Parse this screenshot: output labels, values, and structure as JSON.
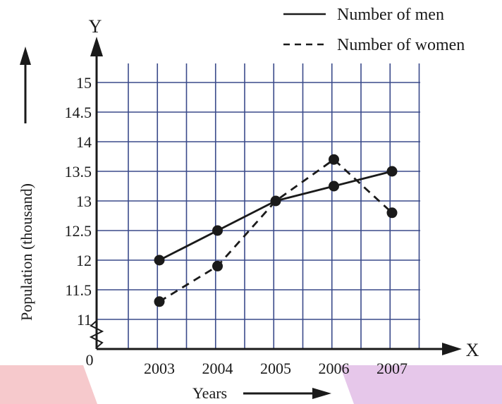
{
  "chart_data": {
    "type": "line",
    "x": [
      "2003",
      "2004",
      "2005",
      "2006",
      "2007"
    ],
    "series": [
      {
        "name": "Number of men",
        "values": [
          12,
          12.5,
          13,
          13.25,
          13.5
        ],
        "style": "solid"
      },
      {
        "name": "Number of women",
        "values": [
          11.3,
          11.9,
          13,
          13.7,
          12.8
        ],
        "style": "dashed"
      }
    ],
    "y_ticks": [
      "11",
      "11.5",
      "12",
      "12.5",
      "13",
      "13.5",
      "14",
      "14.5",
      "15"
    ],
    "ylim": [
      10.5,
      15.5
    ],
    "xlabel": "Years",
    "ylabel": "Population (thousand)",
    "x_axis_letter": "X",
    "y_axis_letter": "Y",
    "origin_label": "0",
    "grid": true,
    "legend": "top-right",
    "colors": {
      "ink": "#1a1a1a",
      "grid": "#3a4a8a",
      "band_left": "#f6c9cc",
      "band_right": "#e6c7ea"
    }
  }
}
